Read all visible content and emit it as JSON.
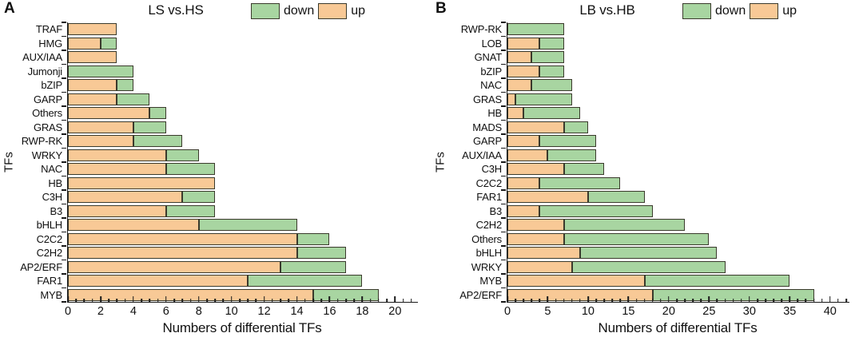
{
  "colors": {
    "up_fill": "#f8c996",
    "down_fill": "#a8d5a1",
    "bar_border": "#3a3a2c",
    "axis": "#1a1a1a",
    "text": "#111111",
    "background": "#ffffff"
  },
  "chart_data": [
    {
      "type": "bar",
      "orientation": "horizontal",
      "stacked": true,
      "panel_label": "A",
      "title": "LS vs.HS",
      "legend": {
        "down": "down",
        "up": "up"
      },
      "legend_position": "top-right",
      "xlabel": "Numbers of differential TFs",
      "ylabel": "TFs",
      "xlim": [
        0,
        21.4
      ],
      "xticks": [
        0,
        2,
        4,
        6,
        8,
        10,
        12,
        14,
        16,
        18,
        20
      ],
      "major_tick_step": 2,
      "minor_tick_step": 0.5,
      "minor_tick_max": 21,
      "grid": false,
      "categories": [
        "TRAF",
        "HMG",
        "AUX/IAA",
        "Jumonji",
        "bZIP",
        "GARP",
        "Others",
        "GRAS",
        "RWP-RK",
        "WRKY",
        "NAC",
        "HB",
        "C3H",
        "B3",
        "bHLH",
        "C2C2",
        "C2H2",
        "AP2/ERF",
        "FAR1",
        "MYB"
      ],
      "series": [
        {
          "name": "up",
          "values": [
            3,
            2,
            3,
            0,
            3,
            3,
            5,
            4,
            4,
            6,
            6,
            9,
            7,
            6,
            8,
            14,
            14,
            13,
            11,
            15
          ]
        },
        {
          "name": "down",
          "values": [
            0,
            1,
            0,
            4,
            1,
            2,
            1,
            2,
            3,
            2,
            3,
            0,
            2,
            3,
            6,
            2,
            3,
            4,
            7,
            4
          ]
        }
      ],
      "totals": [
        3,
        3,
        3,
        4,
        4,
        5,
        6,
        6,
        7,
        8,
        9,
        9,
        9,
        9,
        14,
        16,
        17,
        17,
        18,
        19
      ]
    },
    {
      "type": "bar",
      "orientation": "horizontal",
      "stacked": true,
      "panel_label": "B",
      "title": "LB vs.HB",
      "legend": {
        "down": "down",
        "up": "up"
      },
      "legend_position": "top-right",
      "xlabel": "Numbers of differential TFs",
      "ylabel": "TFs",
      "xlim": [
        0,
        42.4
      ],
      "xticks": [
        0,
        5,
        10,
        15,
        20,
        25,
        30,
        35,
        40
      ],
      "major_tick_step": 5,
      "minor_tick_step": 1,
      "minor_tick_max": 42,
      "grid": false,
      "categories": [
        "RWP-RK",
        "LOB",
        "GNAT",
        "bZIP",
        "NAC",
        "GRAS",
        "HB",
        "MADS",
        "GARP",
        "AUX/IAA",
        "C3H",
        "C2C2",
        "FAR1",
        "B3",
        "C2H2",
        "Others",
        "bHLH",
        "WRKY",
        "MYB",
        "AP2/ERF"
      ],
      "series": [
        {
          "name": "up",
          "values": [
            0,
            4,
            3,
            4,
            3,
            1,
            2,
            7,
            4,
            5,
            7,
            4,
            10,
            4,
            7,
            7,
            9,
            8,
            17,
            18
          ]
        },
        {
          "name": "down",
          "values": [
            7,
            3,
            4,
            3,
            5,
            7,
            7,
            3,
            7,
            6,
            5,
            10,
            7,
            14,
            15,
            18,
            17,
            19,
            18,
            20
          ]
        }
      ],
      "totals": [
        7,
        7,
        7,
        7,
        8,
        8,
        9,
        10,
        11,
        11,
        12,
        14,
        17,
        18,
        22,
        25,
        26,
        27,
        35,
        38
      ]
    }
  ]
}
